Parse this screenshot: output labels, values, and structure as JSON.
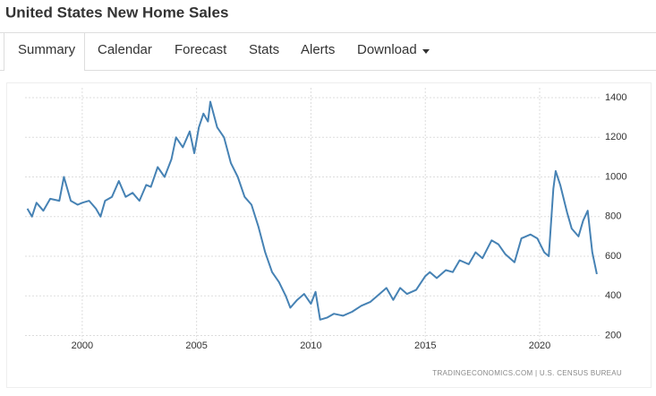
{
  "header": {
    "title": "United States New Home Sales"
  },
  "tabs": [
    "Summary",
    "Calendar",
    "Forecast",
    "Stats",
    "Alerts",
    "Download"
  ],
  "chart_data": {
    "type": "line",
    "source": "TRADINGECONOMICS.COM  |  U.S. CENSUS BUREAU",
    "color": "#4682b4",
    "grid": true,
    "x": [
      1997.6,
      1997.8,
      1998.0,
      1998.3,
      1998.6,
      1999.0,
      1999.2,
      1999.5,
      1999.8,
      2000.0,
      2000.3,
      2000.6,
      2000.8,
      2001.0,
      2001.3,
      2001.6,
      2001.9,
      2002.2,
      2002.5,
      2002.8,
      2003.0,
      2003.3,
      2003.6,
      2003.9,
      2004.1,
      2004.4,
      2004.7,
      2004.9,
      2005.1,
      2005.3,
      2005.5,
      2005.6,
      2005.9,
      2006.2,
      2006.5,
      2006.8,
      2007.1,
      2007.4,
      2007.7,
      2008.0,
      2008.3,
      2008.6,
      2008.9,
      2009.1,
      2009.4,
      2009.7,
      2010.0,
      2010.2,
      2010.4,
      2010.7,
      2011.0,
      2011.4,
      2011.8,
      2012.2,
      2012.6,
      2013.0,
      2013.3,
      2013.6,
      2013.9,
      2014.2,
      2014.6,
      2015.0,
      2015.2,
      2015.5,
      2015.9,
      2016.2,
      2016.5,
      2016.9,
      2017.2,
      2017.5,
      2017.9,
      2018.2,
      2018.5,
      2018.9,
      2019.2,
      2019.6,
      2019.9,
      2020.2,
      2020.4,
      2020.6,
      2020.7,
      2020.9,
      2021.2,
      2021.4,
      2021.7,
      2021.9,
      2022.1,
      2022.3,
      2022.5
    ],
    "values": [
      840,
      800,
      870,
      830,
      890,
      880,
      1000,
      880,
      860,
      870,
      880,
      840,
      800,
      880,
      900,
      980,
      900,
      920,
      880,
      960,
      950,
      1050,
      1000,
      1090,
      1200,
      1150,
      1230,
      1120,
      1250,
      1320,
      1280,
      1380,
      1250,
      1200,
      1070,
      1000,
      900,
      860,
      750,
      620,
      520,
      470,
      400,
      340,
      380,
      410,
      360,
      420,
      280,
      290,
      310,
      300,
      320,
      350,
      370,
      410,
      440,
      380,
      440,
      410,
      430,
      500,
      520,
      490,
      530,
      520,
      580,
      560,
      620,
      590,
      680,
      660,
      610,
      570,
      690,
      710,
      690,
      620,
      600,
      940,
      1030,
      960,
      820,
      740,
      700,
      780,
      830,
      620,
      510
    ],
    "xlim": [
      1997.5,
      2022.7
    ],
    "xticks": [
      2000,
      2005,
      2010,
      2015,
      2020
    ],
    "ylim": [
      130,
      1450
    ],
    "yticks": [
      200,
      400,
      600,
      800,
      1000,
      1200,
      1400
    ]
  }
}
